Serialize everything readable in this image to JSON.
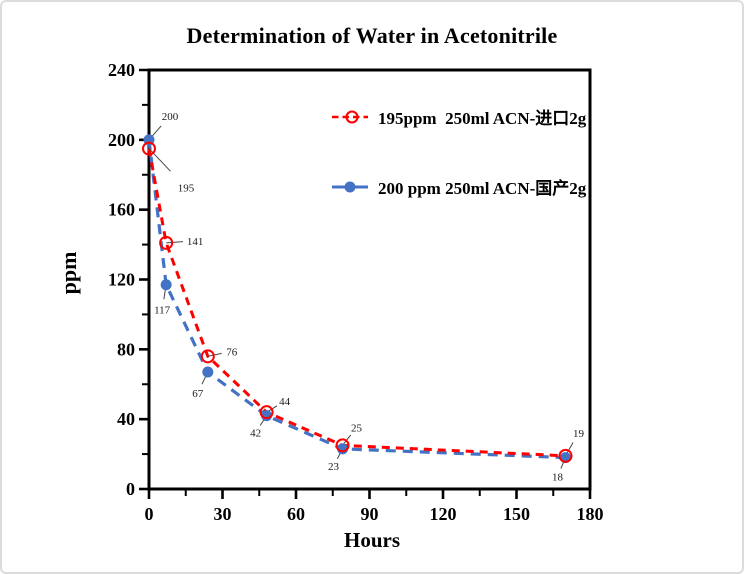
{
  "frame": {
    "background": "#ffffff",
    "border_color": "#dcdcdc"
  },
  "chart_data": {
    "type": "line",
    "title": "Determination of Water in Acetonitrile",
    "xlabel": "Hours",
    "ylabel": "ppm",
    "xlim": [
      0,
      180
    ],
    "ylim": [
      0,
      240
    ],
    "x_major_ticks": [
      0,
      30,
      60,
      90,
      120,
      150,
      180
    ],
    "x_minor_step": 15,
    "y_major_ticks": [
      0,
      40,
      80,
      120,
      160,
      200,
      240
    ],
    "y_minor_step": 20,
    "grid": false,
    "legend_position": "inside-top-center",
    "series": [
      {
        "name": "195ppm  250ml ACN-进口2g",
        "color": "#ff0000",
        "line_style": "dashed",
        "dash": [
          8,
          6
        ],
        "line_width": 3,
        "marker": "open-circle",
        "x": [
          0,
          7,
          24,
          48,
          79,
          170
        ],
        "y": [
          195,
          141,
          76,
          44,
          25,
          19
        ],
        "labels": [
          "195",
          "141",
          "76",
          "44",
          "25",
          "19"
        ],
        "label_offsets": [
          [
            37,
            39
          ],
          [
            29,
            -2
          ],
          [
            24,
            -5
          ],
          [
            18,
            -11
          ],
          [
            14,
            -18
          ],
          [
            13,
            -23
          ]
        ]
      },
      {
        "name": "200 ppm 250ml ACN-国产2g",
        "color": "#4472c4",
        "line_style": "dashed",
        "dash": [
          10,
          7
        ],
        "line_width": 3.2,
        "marker": "filled-circle",
        "x": [
          0,
          7,
          24,
          48,
          79,
          170
        ],
        "y": [
          200,
          117,
          67,
          42,
          23,
          18
        ],
        "labels": [
          "200",
          "117",
          "67",
          "42",
          "23",
          "18"
        ],
        "label_offsets": [
          [
            21,
            -24
          ],
          [
            -4,
            25
          ],
          [
            -10,
            21
          ],
          [
            -11,
            17
          ],
          [
            -9,
            17
          ],
          [
            -8,
            19
          ]
        ]
      }
    ]
  }
}
